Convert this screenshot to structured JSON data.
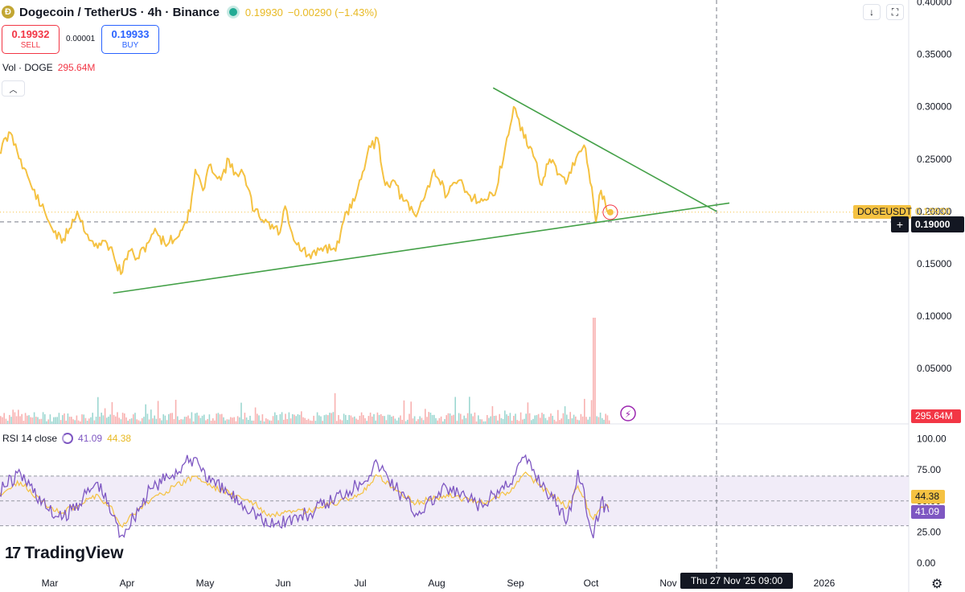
{
  "header": {
    "symbol": "Dogecoin / TetherUS · 4h · Binance",
    "coin_icon": "dogecoin-icon",
    "last_price": "0.19930",
    "change": "−0.00290 (−1.43%)"
  },
  "trade": {
    "sell_price": "0.19932",
    "sell_label": "SELL",
    "spread": "0.00001",
    "buy_price": "0.19933",
    "buy_label": "BUY"
  },
  "volume_legend": {
    "name": "Vol · DOGE",
    "value": "295.64M"
  },
  "rsi_legend": {
    "name": "RSI 14 close",
    "value1": "41.09",
    "value2": "44.38"
  },
  "tags": {
    "ticker": "DOGEUSDT",
    "ticker_price": "0.19930",
    "cross_icon": "+",
    "cross_price": "0.19000",
    "volume": "295.64M",
    "rsi_ma": "44.38",
    "rsi": "41.09",
    "cross_date": "Thu 27 Nov '25   09:00"
  },
  "toolbar": {
    "download_icon": "↓",
    "fullscreen_icon": "⛶",
    "settings_icon": "⚙"
  },
  "brand": {
    "mark": "17",
    "name": "TradingView"
  },
  "colors": {
    "price_line": "#f5c242",
    "trendline": "#43a047",
    "rsi_line": "#7e57c2",
    "rsi_ma": "#f5c242",
    "vol_up": "#26a69a",
    "vol_down": "#ef5350",
    "rsi_band": "#ede7f6"
  },
  "chart_data": [
    {
      "type": "line",
      "name": "price",
      "x_axis": {
        "labels": [
          "Mar",
          "Apr",
          "May",
          "Jun",
          "Jul",
          "Aug",
          "Sep",
          "Oct",
          "Nov",
          "2026"
        ]
      },
      "y_axis": {
        "ticks": [
          "0.40000",
          "0.35000",
          "0.30000",
          "0.25000",
          "0.20000",
          "0.15000",
          "0.10000",
          "0.05000"
        ],
        "ylim": [
          0.0,
          0.4
        ]
      },
      "x": [
        "2025-02-20",
        "2025-02-25",
        "2025-03-01",
        "2025-03-05",
        "2025-03-09",
        "2025-03-12",
        "2025-03-17",
        "2025-03-23",
        "2025-03-27",
        "2025-03-31",
        "2025-04-03",
        "2025-04-06",
        "2025-04-09",
        "2025-04-12",
        "2025-04-16",
        "2025-04-21",
        "2025-04-23",
        "2025-04-26",
        "2025-05-01",
        "2025-05-06",
        "2025-05-08",
        "2025-05-11",
        "2025-05-14",
        "2025-05-18",
        "2025-05-21",
        "2025-05-23",
        "2025-05-26",
        "2025-05-31",
        "2025-06-05",
        "2025-06-10",
        "2025-06-12",
        "2025-06-16",
        "2025-06-22",
        "2025-06-26",
        "2025-07-01",
        "2025-07-03",
        "2025-07-06",
        "2025-07-09",
        "2025-07-11",
        "2025-07-14",
        "2025-07-18",
        "2025-07-21",
        "2025-07-24",
        "2025-07-28",
        "2025-08-02",
        "2025-08-06",
        "2025-08-09",
        "2025-08-14",
        "2025-08-19",
        "2025-08-23",
        "2025-08-28",
        "2025-09-01",
        "2025-09-05",
        "2025-09-09",
        "2025-09-13",
        "2025-09-16",
        "2025-09-20",
        "2025-09-23",
        "2025-09-26",
        "2025-09-30",
        "2025-10-04",
        "2025-10-07",
        "2025-10-10",
        "2025-10-11",
        "2025-10-13",
        "2025-10-16"
      ],
      "y": [
        0.255,
        0.275,
        0.25,
        0.225,
        0.205,
        0.19,
        0.17,
        0.2,
        0.178,
        0.165,
        0.172,
        0.16,
        0.14,
        0.162,
        0.155,
        0.178,
        0.18,
        0.17,
        0.175,
        0.2,
        0.24,
        0.22,
        0.245,
        0.23,
        0.25,
        0.235,
        0.24,
        0.2,
        0.19,
        0.18,
        0.205,
        0.17,
        0.155,
        0.165,
        0.165,
        0.17,
        0.2,
        0.21,
        0.23,
        0.255,
        0.27,
        0.225,
        0.23,
        0.21,
        0.195,
        0.22,
        0.24,
        0.215,
        0.23,
        0.215,
        0.21,
        0.215,
        0.25,
        0.3,
        0.27,
        0.26,
        0.225,
        0.25,
        0.235,
        0.23,
        0.255,
        0.26,
        0.21,
        0.19,
        0.22,
        0.2
      ],
      "annotations": [
        {
          "type": "trendline",
          "from": [
            "2025-04-06",
            0.122
          ],
          "to": [
            "2025-12-02",
            0.208
          ]
        },
        {
          "type": "trendline",
          "from": [
            "2025-09-01",
            0.318
          ],
          "to": [
            "2025-11-27",
            0.2
          ]
        }
      ],
      "reference_lines": [
        0.1993,
        0.19
      ]
    },
    {
      "type": "bar",
      "name": "volume",
      "last_value": "295.64M",
      "note": "small bars throughout, spike on 2025-10-10"
    },
    {
      "type": "line",
      "name": "RSI",
      "y_axis": {
        "ticks": [
          "100.00",
          "75.00",
          "50.00",
          "25.00",
          "0.00"
        ],
        "ylim": [
          0,
          100
        ]
      },
      "band": [
        30,
        70
      ],
      "x": [
        "2025-02-20",
        "2025-03-01",
        "2025-03-12",
        "2025-03-17",
        "2025-03-31",
        "2025-04-06",
        "2025-04-09",
        "2025-04-21",
        "2025-05-08",
        "2025-05-14",
        "2025-05-31",
        "2025-06-05",
        "2025-06-22",
        "2025-07-11",
        "2025-07-18",
        "2025-08-02",
        "2025-08-14",
        "2025-08-28",
        "2025-09-09",
        "2025-09-13",
        "2025-09-30",
        "2025-10-04",
        "2025-10-10",
        "2025-10-13",
        "2025-10-16"
      ],
      "y": [
        58,
        72,
        42,
        35,
        65,
        38,
        22,
        60,
        85,
        65,
        42,
        30,
        40,
        65,
        80,
        40,
        60,
        45,
        70,
        85,
        35,
        75,
        20,
        50,
        41.09
      ],
      "ma": [
        55,
        65,
        45,
        40,
        55,
        42,
        30,
        52,
        70,
        62,
        48,
        38,
        42,
        55,
        70,
        48,
        55,
        48,
        60,
        72,
        45,
        62,
        35,
        45,
        44.38
      ]
    }
  ]
}
